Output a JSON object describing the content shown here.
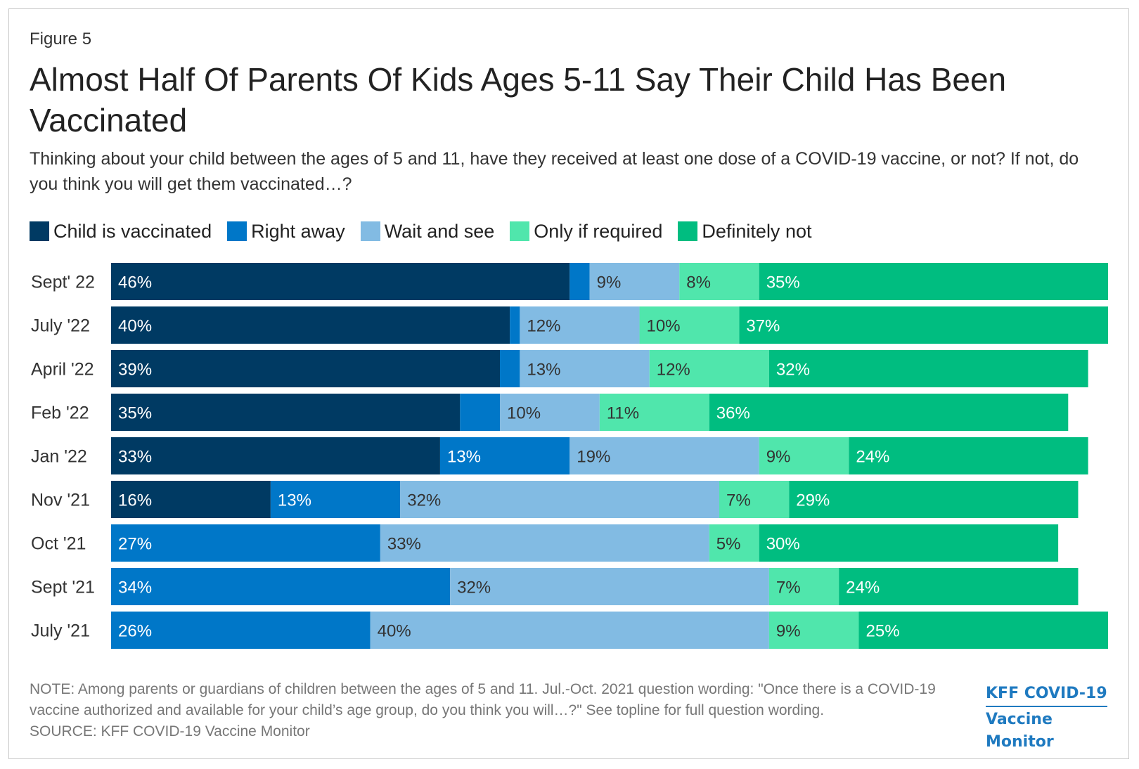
{
  "figure_label": "Figure 5",
  "title": "Almost Half Of Parents Of Kids Ages 5-11 Say Their Child Has Been Vaccinated",
  "subtitle": "Thinking about your child between the ages of 5 and 11, have they received at least one dose of a COVID-19 vaccine, or not? If not, do you think you will get them vaccinated…?",
  "note": "NOTE: Among parents or guardians of children between the ages of 5 and 11. Jul.-Oct. 2021 question wording: \"Once there is a COVID-19 vaccine authorized and available for your child’s age group, do you think you will…?\" See topline for full question wording.",
  "source": "SOURCE: KFF COVID-19 Vaccine Monitor",
  "logo": {
    "line1": "KFF COVID-19",
    "line2": "Vaccine Monitor"
  },
  "chart_data": {
    "type": "bar",
    "orientation": "horizontal",
    "stacked": true,
    "categories": [
      "Sept' 22",
      "July '22",
      "April '22",
      "Feb '22",
      "Jan '22",
      "Nov '21",
      "Oct '21",
      "Sept '21",
      "July '21"
    ],
    "series": [
      {
        "name": "Child is vaccinated",
        "color": "#003a63",
        "label_color": "#ffffff",
        "values": [
          46,
          40,
          39,
          35,
          33,
          16,
          0,
          0,
          0
        ],
        "labels": [
          "46%",
          "40%",
          "39%",
          "35%",
          "33%",
          "16%",
          "",
          "",
          ""
        ]
      },
      {
        "name": "Right away",
        "color": "#0077c8",
        "label_color": "#ffffff",
        "values": [
          2,
          1,
          2,
          4,
          13,
          13,
          27,
          34,
          26
        ],
        "labels": [
          "",
          "",
          "",
          "",
          "13%",
          "13%",
          "27%",
          "34%",
          "26%"
        ]
      },
      {
        "name": "Wait and see",
        "color": "#82bbe3",
        "label_color": "#333333",
        "values": [
          9,
          12,
          13,
          10,
          19,
          32,
          33,
          32,
          40
        ],
        "labels": [
          "9%",
          "12%",
          "13%",
          "10%",
          "19%",
          "32%",
          "33%",
          "32%",
          "40%"
        ]
      },
      {
        "name": "Only if required",
        "color": "#50e6ac",
        "label_color": "#333333",
        "values": [
          8,
          10,
          12,
          11,
          9,
          7,
          5,
          7,
          9
        ],
        "labels": [
          "8%",
          "10%",
          "12%",
          "11%",
          "9%",
          "7%",
          "5%",
          "7%",
          "9%"
        ]
      },
      {
        "name": "Definitely not",
        "color": "#00bd80",
        "label_color": "#ffffff",
        "values": [
          35,
          37,
          32,
          36,
          24,
          29,
          30,
          24,
          25
        ],
        "labels": [
          "35%",
          "37%",
          "32%",
          "36%",
          "24%",
          "29%",
          "30%",
          "24%",
          "25%"
        ]
      }
    ],
    "xlim": [
      0,
      100
    ],
    "grid": false,
    "legend_position": "top-left"
  }
}
